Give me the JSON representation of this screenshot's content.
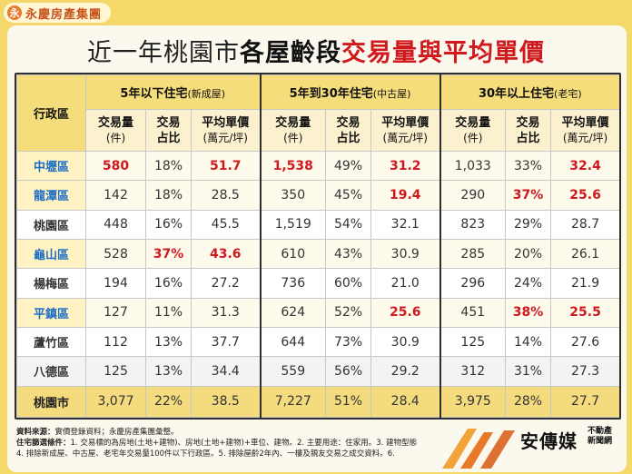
{
  "logo": {
    "mark": "永",
    "text": "永慶房產集團"
  },
  "title": {
    "part1": "近一年桃園市",
    "part2": "各屋齡段",
    "part3": "交易量與平均單價"
  },
  "table": {
    "region_header": "行政區",
    "groups": [
      {
        "main": "5年以下住宅",
        "sub": "(新成屋)"
      },
      {
        "main": "5年到30年住宅",
        "sub": "(中古屋)"
      },
      {
        "main": "30年以上住宅",
        "sub": "(老宅)"
      }
    ],
    "col_volume": {
      "main": "交易量",
      "unit": "(件)"
    },
    "col_ratio": {
      "line1": "交易",
      "line2": "占比"
    },
    "col_price": {
      "main": "平均單價",
      "unit": "(萬元/坪)"
    }
  },
  "chart_data": {
    "type": "table",
    "title": "近一年桃園市各屋齡段交易量與平均單價",
    "columns": [
      "行政區",
      "5年以下住宅 交易量(件)",
      "5年以下住宅 交易占比",
      "5年以下住宅 平均單價(萬元/坪)",
      "5年到30年住宅 交易量(件)",
      "5年到30年住宅 交易占比",
      "5年到30年住宅 平均單價(萬元/坪)",
      "30年以上住宅 交易量(件)",
      "30年以上住宅 交易占比",
      "30年以上住宅 平均單價(萬元/坪)"
    ],
    "rows": [
      {
        "region": "中壢區",
        "highlight": true,
        "cells": [
          "580",
          "18%",
          "51.7",
          "1,538",
          "49%",
          "31.2",
          "1,033",
          "33%",
          "32.4"
        ],
        "red": [
          0,
          2,
          3,
          5,
          8
        ]
      },
      {
        "region": "龍潭區",
        "highlight": true,
        "cells": [
          "142",
          "18%",
          "28.5",
          "350",
          "45%",
          "19.4",
          "290",
          "37%",
          "25.6"
        ],
        "red": [
          5,
          7,
          8
        ]
      },
      {
        "region": "桃園區",
        "highlight": false,
        "cells": [
          "448",
          "16%",
          "45.5",
          "1,519",
          "54%",
          "32.1",
          "823",
          "29%",
          "28.7"
        ],
        "red": []
      },
      {
        "region": "龜山區",
        "highlight": true,
        "cells": [
          "528",
          "37%",
          "43.6",
          "610",
          "43%",
          "30.9",
          "285",
          "20%",
          "26.1"
        ],
        "red": [
          1,
          2
        ]
      },
      {
        "region": "楊梅區",
        "highlight": false,
        "cells": [
          "194",
          "16%",
          "27.2",
          "736",
          "60%",
          "21.0",
          "296",
          "24%",
          "21.9"
        ],
        "red": []
      },
      {
        "region": "平鎮區",
        "highlight": true,
        "cells": [
          "127",
          "11%",
          "31.3",
          "624",
          "52%",
          "25.6",
          "451",
          "38%",
          "25.5"
        ],
        "red": [
          5,
          7,
          8
        ]
      },
      {
        "region": "蘆竹區",
        "highlight": false,
        "cells": [
          "112",
          "13%",
          "37.7",
          "644",
          "73%",
          "30.9",
          "125",
          "14%",
          "27.6"
        ],
        "red": []
      },
      {
        "region": "八德區",
        "highlight": false,
        "cells": [
          "125",
          "13%",
          "34.4",
          "559",
          "56%",
          "29.2",
          "312",
          "31%",
          "27.3"
        ],
        "red": []
      },
      {
        "region": "桃園市",
        "total": true,
        "cells": [
          "3,077",
          "22%",
          "38.5",
          "7,227",
          "51%",
          "28.4",
          "3,975",
          "28%",
          "27.7"
        ],
        "red": []
      }
    ],
    "colors": {
      "highlight_text": "#d0181f",
      "region_highlight": "#1e6ec3",
      "header_bg": "#f6dd7b"
    }
  },
  "footer": {
    "line1_label": "資料來源：",
    "line1": "實價登錄資料；永慶房產集團彙整。",
    "line2_label": "住宅篩選條件：",
    "line2": "1. 交易標的為房地(土地+建物)、房地(土地+建物)+車位、建物。2. 主要用途：住家用。3. 建物型態",
    "line3": "4. 排除新成屋、中古屋、老宅年交易量100件以下行政區。5. 排除屋齡2年內、一樓及親友交易之成交資料。6."
  },
  "brand": {
    "name": "安傳媒",
    "sub1": "不動產",
    "sub2": "新聞網"
  }
}
